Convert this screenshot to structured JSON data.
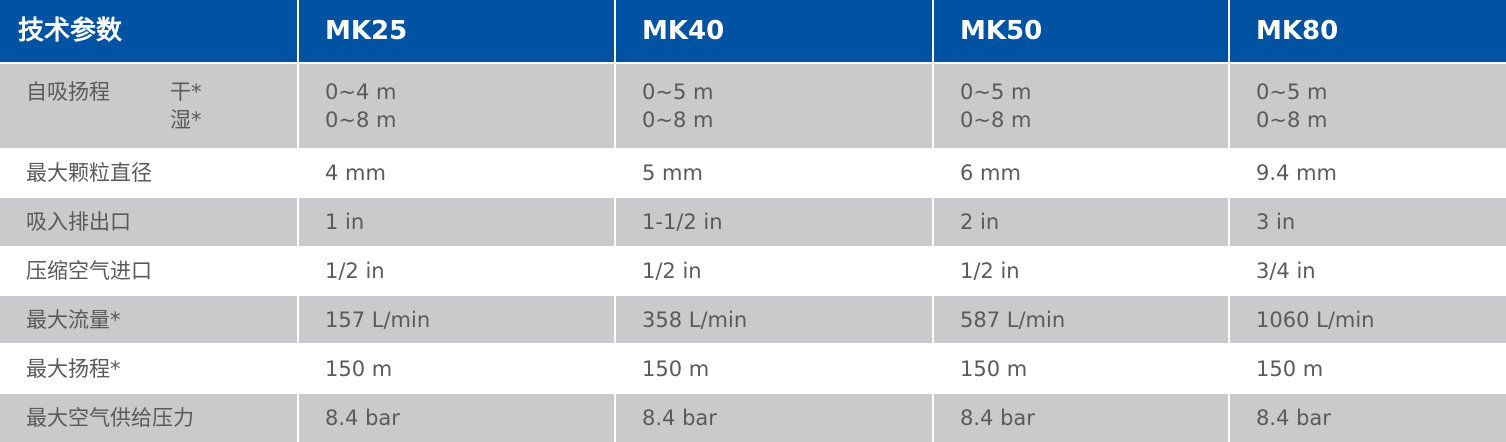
{
  "table": {
    "header": [
      "技术参数",
      "MK25",
      "MK40",
      "MK50",
      "MK80"
    ],
    "rows": [
      {
        "label": "自吸扬程",
        "sub": [
          "干*",
          "湿*"
        ],
        "cells": [
          [
            "0~4 m",
            "0~8 m"
          ],
          [
            "0~5 m",
            "0~8 m"
          ],
          [
            "0~5 m",
            "0~8 m"
          ],
          [
            "0~5 m",
            "0~8 m"
          ]
        ]
      },
      {
        "label": "最大颗粒直径",
        "cells": [
          "4 mm",
          "5 mm",
          "6 mm",
          "9.4 mm"
        ]
      },
      {
        "label": "吸入排出口",
        "cells": [
          "1 in",
          "1-1/2 in",
          "2 in",
          "3 in"
        ]
      },
      {
        "label": "压缩空气进口",
        "cells": [
          "1/2 in",
          "1/2 in",
          "1/2 in",
          "3/4 in"
        ]
      },
      {
        "label": "最大流量*",
        "cells": [
          "157 L/min",
          "358 L/min",
          "587 L/min",
          "1060 L/min"
        ]
      },
      {
        "label": "最大扬程*",
        "cells": [
          "150 m",
          "150 m",
          "150 m",
          "150 m"
        ]
      },
      {
        "label": "最大空气供给压力",
        "cells": [
          "8.4 bar",
          "8.4 bar",
          "8.4 bar",
          "8.4 bar"
        ]
      }
    ]
  }
}
